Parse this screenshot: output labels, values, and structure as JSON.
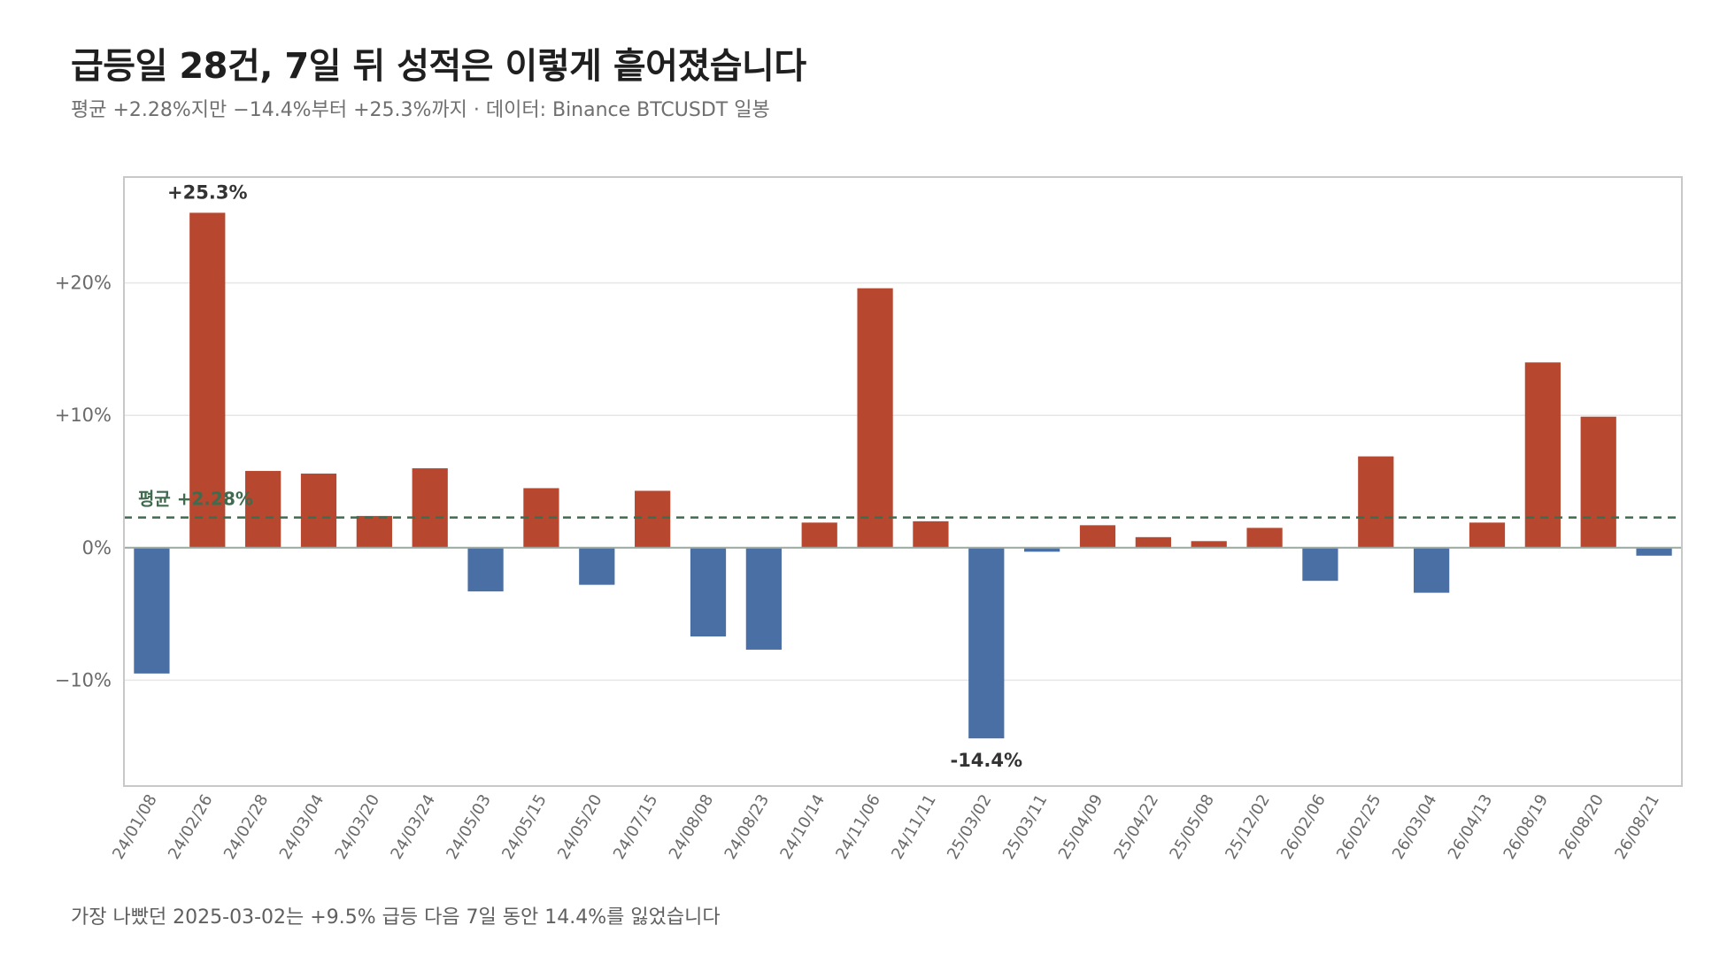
{
  "header": {
    "title": "급등일 28건, 7일 뒤 성적은 이렇게 흩어졌습니다",
    "subtitle": "평균 +2.28%지만 −14.4%부터 +25.3%까지 · 데이터: Binance BTCUSDT 일봉"
  },
  "footnote": "가장 나빴던 2025-03-02는 +9.5% 급등 다음 7일 동안 14.4%를 잃었습니다",
  "colors": {
    "positive": "#b8472f",
    "negative": "#4a6fa5",
    "mean_line": "#3f6b4f",
    "grid": "#e6e6e6",
    "zero_line": "#9aa8a0",
    "frame": "#c8c8c8"
  },
  "chart_data": {
    "type": "bar",
    "categories": [
      "24/01/08",
      "24/02/26",
      "24/02/28",
      "24/03/04",
      "24/03/20",
      "24/03/24",
      "24/05/03",
      "24/05/15",
      "24/05/20",
      "24/07/15",
      "24/08/08",
      "24/08/23",
      "24/10/14",
      "24/11/06",
      "24/11/11",
      "25/03/02",
      "25/03/11",
      "25/04/09",
      "25/04/22",
      "25/05/08",
      "25/12/02",
      "26/02/06",
      "26/02/25",
      "26/03/04",
      "26/04/13",
      "26/08/19",
      "26/08/20",
      "26/08/21"
    ],
    "values": [
      -9.5,
      25.3,
      5.8,
      5.6,
      2.4,
      6.0,
      -3.3,
      4.5,
      -2.8,
      4.3,
      -6.7,
      -7.7,
      1.9,
      19.6,
      2.0,
      -14.4,
      -0.3,
      1.7,
      0.8,
      0.5,
      1.5,
      -2.5,
      6.9,
      -3.4,
      1.9,
      14.0,
      9.9,
      -0.6
    ],
    "ylim": [
      -18,
      28
    ],
    "yticks": [
      -10,
      0,
      10,
      20
    ],
    "ytick_labels": [
      "−10%",
      "0%",
      "+10%",
      "+20%"
    ],
    "grid": true,
    "mean": 2.28,
    "mean_label": "평균 +2.28%",
    "annotations": [
      {
        "index": 1,
        "text": "+25.3%"
      },
      {
        "index": 15,
        "text": "-14.4%"
      }
    ]
  }
}
